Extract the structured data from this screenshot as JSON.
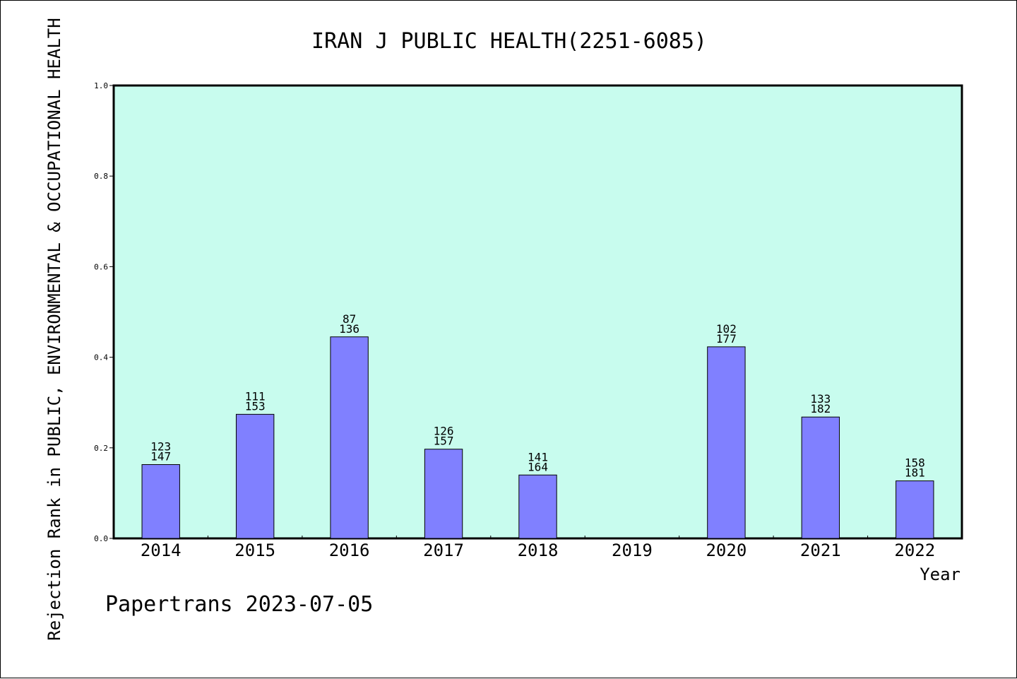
{
  "chart_data": {
    "type": "bar",
    "title": "IRAN J PUBLIC HEALTH(2251-6085)",
    "xlabel": "Year",
    "ylabel": "Rejection Rank in PUBLIC, ENVIRONMENTAL & OCCUPATIONAL HEALTH",
    "ylim": [
      0,
      1.0
    ],
    "yticks": [
      "0.0",
      "0.2",
      "0.4",
      "0.6",
      "0.8",
      "1.0"
    ],
    "categories": [
      "2014",
      "2015",
      "2016",
      "2017",
      "2018",
      "2019",
      "2020",
      "2021",
      "2022"
    ],
    "values": [
      0.163,
      0.274,
      0.445,
      0.197,
      0.14,
      null,
      0.423,
      0.268,
      0.127
    ],
    "labels_top": [
      "123",
      "111",
      "87",
      "126",
      "141",
      null,
      "102",
      "133",
      "158"
    ],
    "labels_bottom": [
      "147",
      "153",
      "136",
      "157",
      "164",
      null,
      "177",
      "182",
      "181"
    ],
    "grid": false,
    "plot_background": "#c8fcee",
    "bar_color": "#8080ff"
  },
  "footer": {
    "credit": "Papertrans 2023-07-05"
  }
}
